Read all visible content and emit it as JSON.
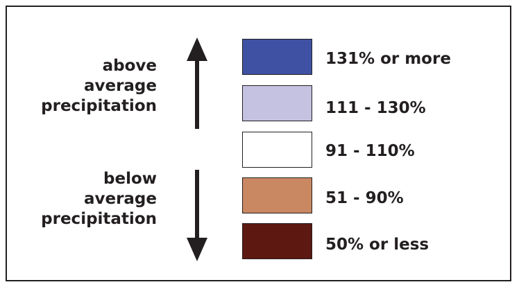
{
  "above": {
    "lines": [
      "above",
      "average",
      "precipitation"
    ]
  },
  "below": {
    "lines": [
      "below",
      "average",
      "precipitation"
    ]
  },
  "legend": [
    {
      "label": "131% or more",
      "color": "#3f51a3"
    },
    {
      "label": "111 - 130%",
      "color": "#c5c1e0"
    },
    {
      "label": "91 - 110%",
      "color": "#ffffff"
    },
    {
      "label": "51 - 90%",
      "color": "#ca8862"
    },
    {
      "label": "50% or less",
      "color": "#5c1811"
    }
  ],
  "arrow_color": "#231f20"
}
